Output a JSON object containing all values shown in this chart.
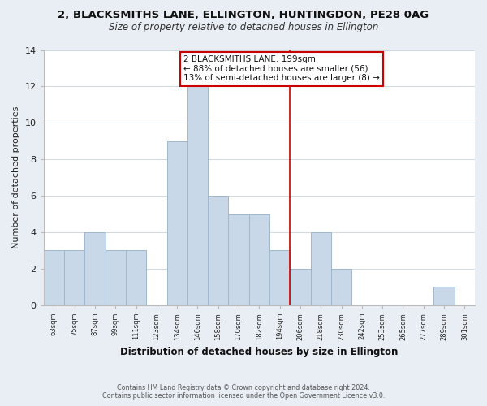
{
  "title": "2, BLACKSMITHS LANE, ELLINGTON, HUNTINGDON, PE28 0AG",
  "subtitle": "Size of property relative to detached houses in Ellington",
  "xlabel": "Distribution of detached houses by size in Ellington",
  "ylabel": "Number of detached properties",
  "bar_labels": [
    "63sqm",
    "75sqm",
    "87sqm",
    "99sqm",
    "111sqm",
    "123sqm",
    "134sqm",
    "146sqm",
    "158sqm",
    "170sqm",
    "182sqm",
    "194sqm",
    "206sqm",
    "218sqm",
    "230sqm",
    "242sqm",
    "253sqm",
    "265sqm",
    "277sqm",
    "289sqm",
    "301sqm"
  ],
  "bar_values": [
    3,
    3,
    4,
    3,
    3,
    0,
    9,
    12,
    6,
    5,
    5,
    3,
    2,
    4,
    2,
    0,
    0,
    0,
    0,
    1,
    0
  ],
  "bar_color": "#c8d8e8",
  "bar_edgecolor": "#a0b8cc",
  "vline_index": 11.5,
  "vline_color": "#cc0000",
  "annotation_title": "2 BLACKSMITHS LANE: 199sqm",
  "annotation_line1": "← 88% of detached houses are smaller (56)",
  "annotation_line2": "13% of semi-detached houses are larger (8) →",
  "annotation_box_color": "#cc0000",
  "annotation_bg": "#ffffff",
  "ylim": [
    0,
    14
  ],
  "yticks": [
    0,
    2,
    4,
    6,
    8,
    10,
    12,
    14
  ],
  "footnote1": "Contains HM Land Registry data © Crown copyright and database right 2024.",
  "footnote2": "Contains public sector information licensed under the Open Government Licence v3.0.",
  "bg_color": "#e8eef4",
  "plot_bg_color": "#ffffff",
  "grid_color": "#d0d8e0"
}
